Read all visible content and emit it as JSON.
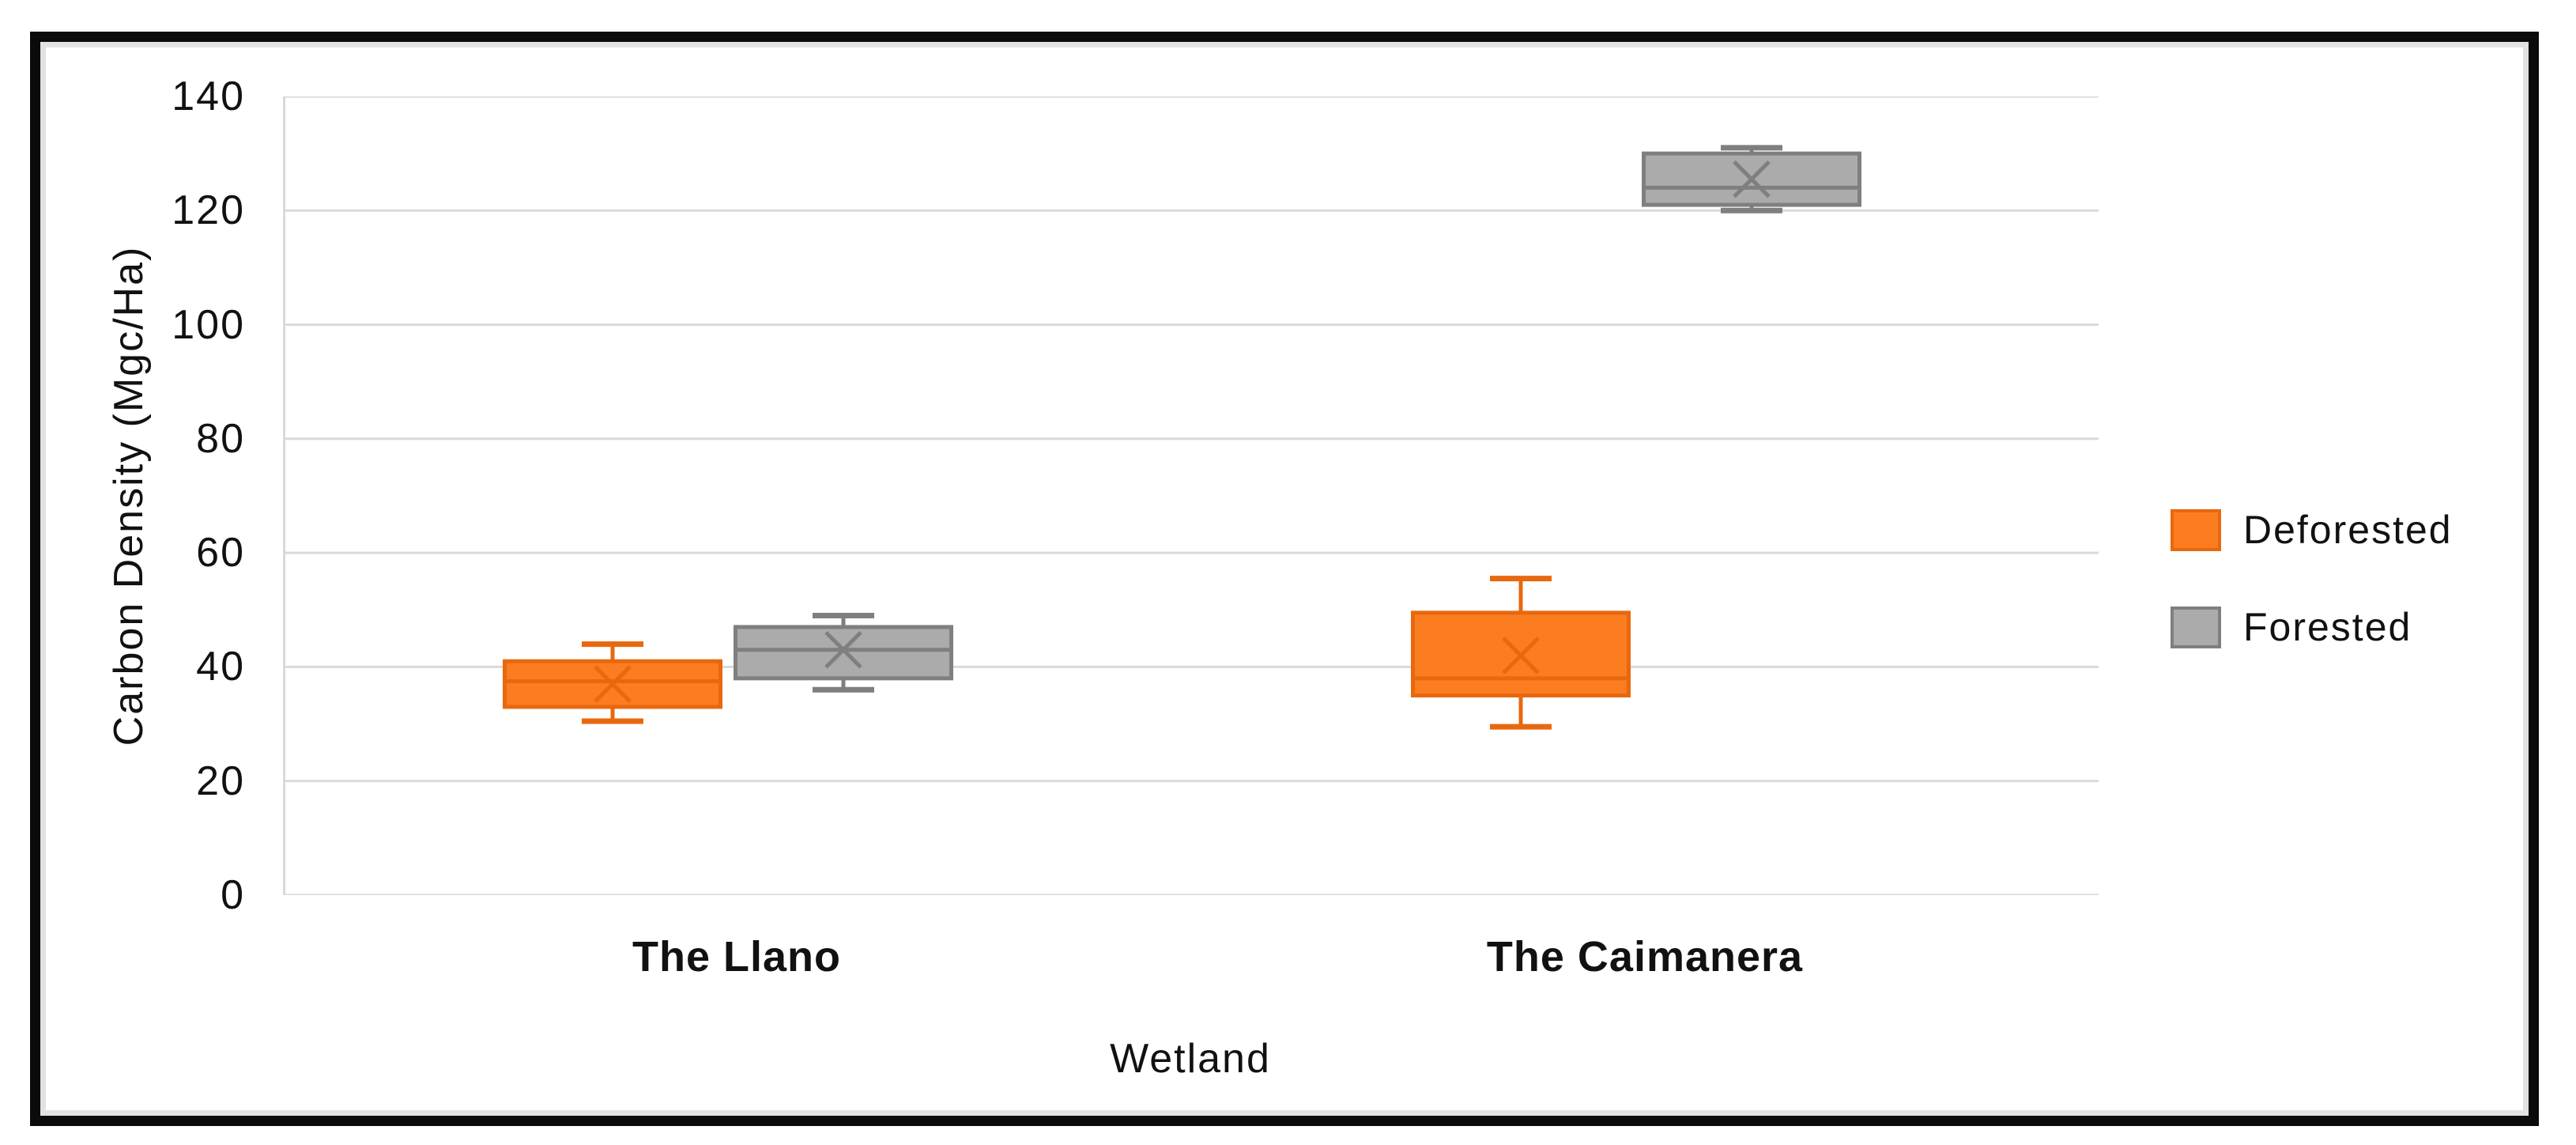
{
  "chart_data": {
    "type": "boxplot",
    "title": "",
    "xlabel": "Wetland",
    "ylabel": "Carbon Density (Mgc/Ha)",
    "ylim": [
      0,
      140
    ],
    "yticks": [
      0,
      20,
      40,
      60,
      80,
      100,
      120,
      140
    ],
    "categories": [
      "The Llano",
      "The Caimanera"
    ],
    "grid": true,
    "legend_position": "right-middle",
    "series": [
      {
        "name": "Deforested",
        "fill": "#FB7D20",
        "stroke": "#E8680F",
        "boxes": [
          {
            "category": "The Llano",
            "whisker_low": 30.5,
            "q1": 33,
            "median": 37.5,
            "q3": 41,
            "whisker_high": 44,
            "mean": 37
          },
          {
            "category": "The Caimanera",
            "whisker_low": 29.5,
            "q1": 35,
            "median": 38,
            "q3": 49.5,
            "whisker_high": 55.5,
            "mean": 42
          }
        ]
      },
      {
        "name": "Forested",
        "fill": "#ABABAB",
        "stroke": "#7F7F7F",
        "boxes": [
          {
            "category": "The Llano",
            "whisker_low": 36,
            "q1": 38,
            "median": 43,
            "q3": 47,
            "whisker_high": 49,
            "mean": 43
          },
          {
            "category": "The Caimanera",
            "whisker_low": 120,
            "q1": 121,
            "median": 124,
            "q3": 130,
            "whisker_high": 131,
            "mean": 125.5
          }
        ]
      }
    ],
    "colors": {
      "gridline": "#D9D9D9",
      "axis_line": "#D9D9D9",
      "text": "#111111",
      "frame": "#0B0B0B",
      "background": "#FFFFFF"
    }
  }
}
